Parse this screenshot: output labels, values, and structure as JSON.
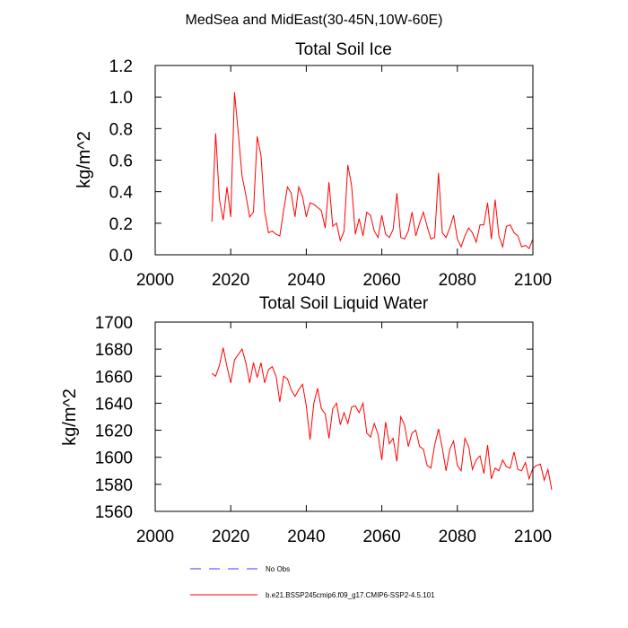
{
  "figure": {
    "title": "MedSea and MidEast(30-45N,10W-60E)"
  },
  "chart_data": [
    {
      "type": "line",
      "title": "Total Soil Ice",
      "xlabel": "",
      "ylabel": "kg/m^2",
      "xlim": [
        2000,
        2100
      ],
      "ylim": [
        0,
        1.2
      ],
      "xticks": [
        2000,
        2020,
        2040,
        2060,
        2080,
        2100
      ],
      "yticks": [
        0,
        0.2,
        0.4,
        0.6,
        0.8,
        1.0,
        1.2
      ],
      "xtick_labels": [
        "2000",
        "2020",
        "2040",
        "2060",
        "2080",
        "2100"
      ],
      "ytick_labels": [
        "0.0",
        "0.2",
        "0.4",
        "0.6",
        "0.8",
        "1.0",
        "1.2"
      ],
      "series": [
        {
          "name": "b.e21.BSSP245cmip6.f09_g17.CMIP6-SSP2-4.5.101",
          "color": "#ff0000",
          "x_start": 2015,
          "values": [
            0.21,
            0.77,
            0.35,
            0.22,
            0.43,
            0.24,
            1.03,
            0.77,
            0.5,
            0.38,
            0.24,
            0.27,
            0.75,
            0.63,
            0.27,
            0.14,
            0.15,
            0.13,
            0.12,
            0.28,
            0.43,
            0.39,
            0.24,
            0.43,
            0.37,
            0.24,
            0.33,
            0.32,
            0.3,
            0.28,
            0.17,
            0.46,
            0.18,
            0.2,
            0.09,
            0.15,
            0.57,
            0.44,
            0.13,
            0.23,
            0.12,
            0.27,
            0.25,
            0.15,
            0.11,
            0.25,
            0.13,
            0.11,
            0.16,
            0.39,
            0.11,
            0.1,
            0.15,
            0.27,
            0.12,
            0.2,
            0.27,
            0.18,
            0.1,
            0.11,
            0.52,
            0.14,
            0.11,
            0.17,
            0.25,
            0.1,
            0.05,
            0.12,
            0.17,
            0.14,
            0.08,
            0.19,
            0.19,
            0.33,
            0.1,
            0.35,
            0.12,
            0.05,
            0.18,
            0.19,
            0.14,
            0.12,
            0.05,
            0.06,
            0.04,
            0.1
          ]
        }
      ]
    },
    {
      "type": "line",
      "title": "Total Soil Liquid Water",
      "xlabel": "",
      "ylabel": "kg/m^2",
      "xlim": [
        2000,
        2100
      ],
      "ylim": [
        1560,
        1700
      ],
      "xticks": [
        2000,
        2020,
        2040,
        2060,
        2080,
        2100
      ],
      "yticks": [
        1560,
        1580,
        1600,
        1620,
        1640,
        1660,
        1680,
        1700
      ],
      "xtick_labels": [
        "2000",
        "2020",
        "2040",
        "2060",
        "2080",
        "2100"
      ],
      "ytick_labels": [
        "1560",
        "1580",
        "1600",
        "1620",
        "1640",
        "1660",
        "1680",
        "1700"
      ],
      "series": [
        {
          "name": "b.e21.BSSP245cmip6.f09_g17.CMIP6-SSP2-4.5.101",
          "color": "#ff0000",
          "x_start": 2015,
          "values": [
            1662,
            1660,
            1668,
            1681,
            1667,
            1655,
            1672,
            1676,
            1680,
            1670,
            1655,
            1670,
            1659,
            1670,
            1655,
            1665,
            1667,
            1660,
            1641,
            1660,
            1658,
            1650,
            1645,
            1650,
            1654,
            1638,
            1613,
            1640,
            1651,
            1636,
            1632,
            1614,
            1636,
            1640,
            1624,
            1633,
            1625,
            1637,
            1638,
            1633,
            1640,
            1618,
            1615,
            1625,
            1617,
            1598,
            1626,
            1610,
            1614,
            1597,
            1630,
            1624,
            1608,
            1618,
            1620,
            1608,
            1606,
            1594,
            1592,
            1609,
            1621,
            1607,
            1590,
            1606,
            1612,
            1594,
            1590,
            1614,
            1608,
            1591,
            1598,
            1601,
            1588,
            1609,
            1584,
            1592,
            1590,
            1598,
            1593,
            1592,
            1604,
            1591,
            1590,
            1596,
            1584,
            1592,
            1594,
            1595,
            1583,
            1591,
            1576
          ]
        }
      ]
    }
  ],
  "legend": {
    "entries": [
      {
        "label": "No Obs",
        "style": "dashed",
        "color": "#3b3bff"
      },
      {
        "label": "b.e21.BSSP245cmip6.f09_g17.CMIP6-SSP2-4.5.101",
        "style": "solid",
        "color": "#ff0000"
      }
    ]
  }
}
